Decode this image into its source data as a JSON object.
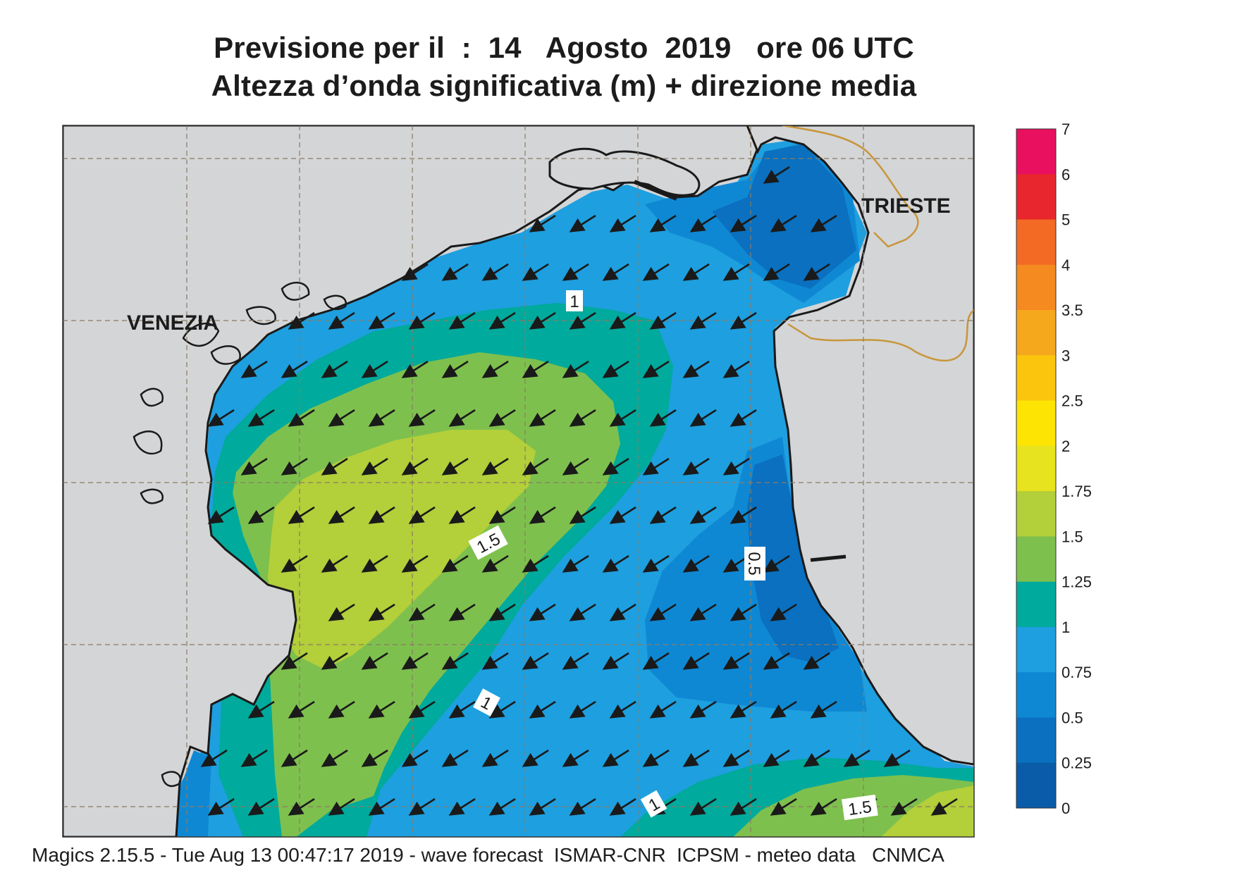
{
  "title_line1": "Previsione per il  :  14   Agosto  2019   ore 06 UTC",
  "title_line2": "Altezza d’onda significativa (m) + direzione media",
  "cities": [
    "VENEZIA",
    "TRIESTE"
  ],
  "contour_labels": [
    "1",
    "1.5",
    "0.5",
    "1",
    "1",
    "1.5"
  ],
  "colorbar": {
    "ticks": [
      "7",
      "6",
      "5",
      "4",
      "3.5",
      "3",
      "2.5",
      "2",
      "1.75",
      "1.5",
      "1.25",
      "1",
      "0.75",
      "0.5",
      "0.25",
      "0"
    ],
    "colors": [
      "#e8105f",
      "#e8262d",
      "#f26a24",
      "#f58a20",
      "#f6a81d",
      "#fbc50d",
      "#fee403",
      "#e7e31e",
      "#b3cf3a",
      "#7ec04e",
      "#00aa9c",
      "#1e9fdf",
      "#0f88d4",
      "#0a70bf",
      "#0a5ba8"
    ]
  },
  "colors": {
    "land": "#d4d5d7",
    "grid": "#8c7b63",
    "border": "#c8963a",
    "coast": "#1a1a1a",
    "arrow": "#1a1a1a"
  },
  "footer": "Magics 2.15.5 - Tue Aug 13 00:47:17 2019 - wave forecast  ISMAR-CNR  ICPSM - meteo data   CNMCA"
}
